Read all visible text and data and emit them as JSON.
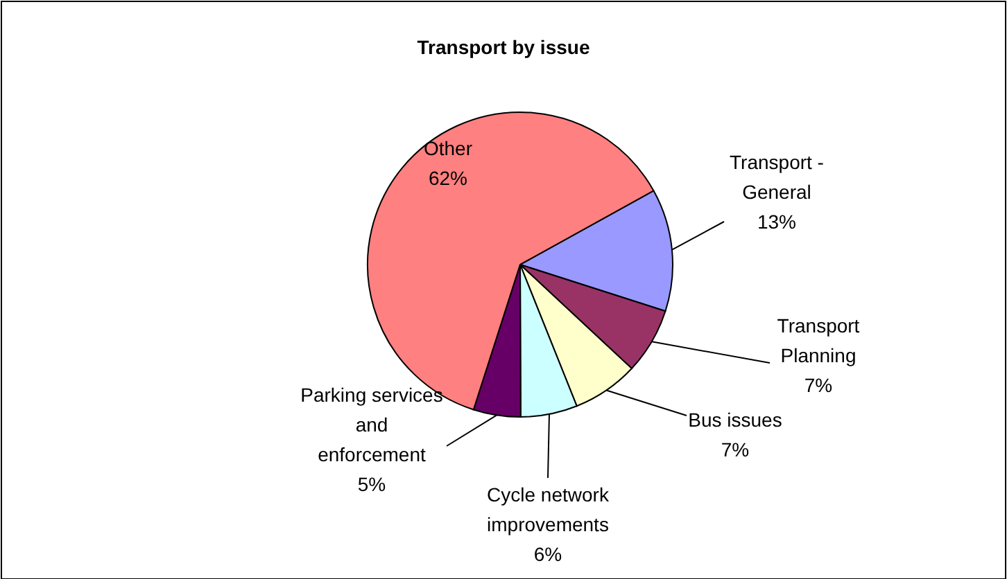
{
  "chart_data": {
    "type": "pie",
    "title": "Transport by issue",
    "categories": [
      "Transport - General",
      "Transport Planning",
      "Bus issues",
      "Cycle network improvements",
      "Parking services and enforcement",
      "Other"
    ],
    "values": [
      13,
      7,
      7,
      6,
      5,
      62
    ],
    "value_labels": [
      "13%",
      "7%",
      "7%",
      "6%",
      "5%",
      "62%"
    ],
    "colors": [
      "#9999ff",
      "#993366",
      "#ffffcc",
      "#ccffff",
      "#660066",
      "#ff8080"
    ]
  }
}
